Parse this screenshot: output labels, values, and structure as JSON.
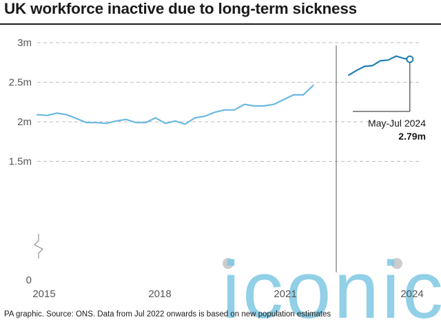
{
  "header": {
    "title": "UK workforce inactive due to long-term sickness"
  },
  "footer": {
    "source": "PA graphic. Source: ONS. Data from Jul 2022 onwards is based on new population estimates"
  },
  "watermark": {
    "text": "iconic",
    "color": "#7ec8e3"
  },
  "colors": {
    "old_series": "#6ab8e0",
    "new_series": "#1f7fb0",
    "grid": "#bbbbbb"
  },
  "annotation": {
    "period": "May-Jul 2024",
    "value": "2.79m"
  },
  "chart_data": {
    "type": "line",
    "title": "UK workforce inactive due to long-term sickness",
    "ylabel": "",
    "xlabel": "",
    "y_unit": "millions",
    "ylim": [
      0,
      3
    ],
    "y_axis_break": true,
    "y_ticks": [
      {
        "value": 0,
        "label": "0"
      },
      {
        "value": 1.5,
        "label": "1.5m"
      },
      {
        "value": 2,
        "label": "2m"
      },
      {
        "value": 2.5,
        "label": "2.5m"
      },
      {
        "value": 3,
        "label": "3m"
      }
    ],
    "x_ticks": [
      "2015",
      "2018",
      "2021",
      "2024"
    ],
    "grid": true,
    "series": [
      {
        "period": "before Jul 2022",
        "x": [
          2015.0,
          2015.25,
          2015.5,
          2015.75,
          2016.0,
          2016.25,
          2016.5,
          2016.75,
          2017.0,
          2017.25,
          2017.5,
          2017.75,
          2018.0,
          2018.25,
          2018.5,
          2018.75,
          2019.0,
          2019.25,
          2019.5,
          2019.75,
          2020.0,
          2020.25,
          2020.5,
          2020.75,
          2021.0,
          2021.25,
          2021.5,
          2021.75,
          2022.0,
          2022.25
        ],
        "values": [
          2.09,
          2.08,
          2.11,
          2.09,
          2.04,
          1.99,
          1.99,
          1.98,
          2.01,
          2.03,
          1.99,
          1.99,
          2.05,
          1.98,
          2.01,
          1.97,
          2.05,
          2.07,
          2.12,
          2.15,
          2.15,
          2.22,
          2.2,
          2.2,
          2.22,
          2.28,
          2.34,
          2.34,
          2.46,
          null
        ]
      },
      {
        "period": "Jul 2022 onwards",
        "x": [
          2022.9,
          2023.1,
          2023.3,
          2023.5,
          2023.7,
          2023.9,
          2024.1,
          2024.3,
          2024.45
        ],
        "values": [
          2.59,
          2.65,
          2.7,
          2.71,
          2.77,
          2.78,
          2.83,
          2.8,
          2.79
        ]
      }
    ]
  }
}
